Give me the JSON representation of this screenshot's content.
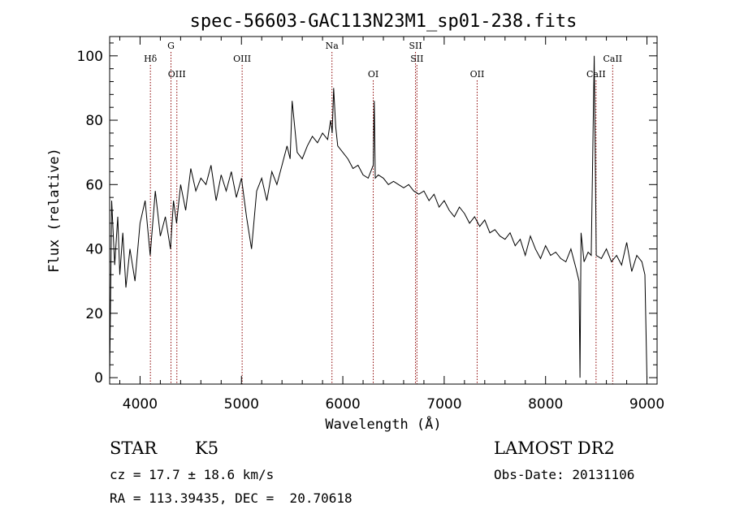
{
  "chart_data": {
    "type": "line",
    "title": "spec-56603-GAC113N23M1_sp01-238.fits",
    "xlabel": "Wavelength (Å)",
    "ylabel": "Flux (relative)",
    "xlim": [
      3700,
      9100
    ],
    "ylim": [
      -2,
      106
    ],
    "xticks": [
      4000,
      5000,
      6000,
      7000,
      8000,
      9000
    ],
    "yticks": [
      0,
      20,
      40,
      60,
      80,
      100
    ],
    "grid": false,
    "series": [
      {
        "x": [
          3700,
          3720,
          3750,
          3780,
          3800,
          3830,
          3860,
          3900,
          3950,
          4000,
          4050,
          4100,
          4150,
          4200,
          4250,
          4300,
          4330,
          4360,
          4400,
          4450,
          4500,
          4550,
          4600,
          4650,
          4700,
          4750,
          4800,
          4850,
          4900,
          4950,
          5000,
          5050,
          5100,
          5150,
          5200,
          5250,
          5300,
          5350,
          5400,
          5450,
          5480,
          5500,
          5550,
          5600,
          5650,
          5700,
          5750,
          5800,
          5850,
          5880,
          5895,
          5910,
          5930,
          5950,
          6000,
          6050,
          6100,
          6150,
          6200,
          6250,
          6300,
          6310,
          6320,
          6350,
          6400,
          6450,
          6500,
          6550,
          6600,
          6650,
          6700,
          6750,
          6800,
          6850,
          6900,
          6950,
          7000,
          7050,
          7100,
          7150,
          7200,
          7250,
          7300,
          7350,
          7400,
          7450,
          7500,
          7550,
          7600,
          7650,
          7700,
          7750,
          7800,
          7850,
          7900,
          7950,
          8000,
          8050,
          8100,
          8150,
          8200,
          8250,
          8300,
          8330,
          8340,
          8350,
          8380,
          8420,
          8450,
          8480,
          8500,
          8550,
          8600,
          8650,
          8700,
          8750,
          8800,
          8850,
          8900,
          8950,
          8980,
          9000
        ],
        "y": [
          0,
          55,
          35,
          50,
          32,
          45,
          28,
          40,
          30,
          48,
          55,
          38,
          58,
          44,
          50,
          40,
          55,
          48,
          60,
          52,
          65,
          58,
          62,
          60,
          66,
          55,
          63,
          58,
          64,
          56,
          62,
          50,
          40,
          58,
          62,
          55,
          64,
          60,
          66,
          72,
          68,
          86,
          70,
          68,
          72,
          75,
          73,
          76,
          74,
          80,
          76,
          90,
          78,
          72,
          70,
          68,
          65,
          66,
          63,
          62,
          66,
          86,
          62,
          63,
          62,
          60,
          61,
          60,
          59,
          60,
          58,
          57,
          58,
          55,
          57,
          53,
          55,
          52,
          50,
          53,
          51,
          48,
          50,
          47,
          49,
          45,
          46,
          44,
          43,
          45,
          41,
          43,
          38,
          44,
          40,
          37,
          41,
          38,
          39,
          37,
          36,
          40,
          34,
          30,
          0,
          45,
          36,
          39,
          38,
          100,
          38,
          37,
          40,
          36,
          38,
          35,
          42,
          33,
          38,
          36,
          32,
          0
        ]
      }
    ],
    "spectral_lines": [
      {
        "label": "Hδ",
        "x": 4102,
        "row": 1
      },
      {
        "label": "G",
        "x": 4305,
        "row": 0
      },
      {
        "label": "OIII",
        "x": 4363,
        "row": 2
      },
      {
        "label": "OIII",
        "x": 5007,
        "row": 1
      },
      {
        "label": "Na",
        "x": 5893,
        "row": 0
      },
      {
        "label": "OI",
        "x": 6300,
        "row": 2
      },
      {
        "label": "SII",
        "x": 6717,
        "row": 0
      },
      {
        "label": "SII",
        "x": 6731,
        "row": 1
      },
      {
        "label": "OII",
        "x": 7325,
        "row": 2
      },
      {
        "label": "CaII",
        "x": 8498,
        "row": 2
      },
      {
        "label": "CaII",
        "x": 8662,
        "row": 1
      }
    ],
    "colors": {
      "spectrum": "#000000",
      "line_markers": "#8b0000"
    }
  },
  "info": {
    "object_type": "STAR",
    "subclass": "K5",
    "survey": "LAMOST DR2",
    "cz": "cz = 17.7 ± 18.6 km/s",
    "obs_date": "Obs-Date: 20131106",
    "coords": "RA = 113.39435, DEC =  20.70618"
  }
}
